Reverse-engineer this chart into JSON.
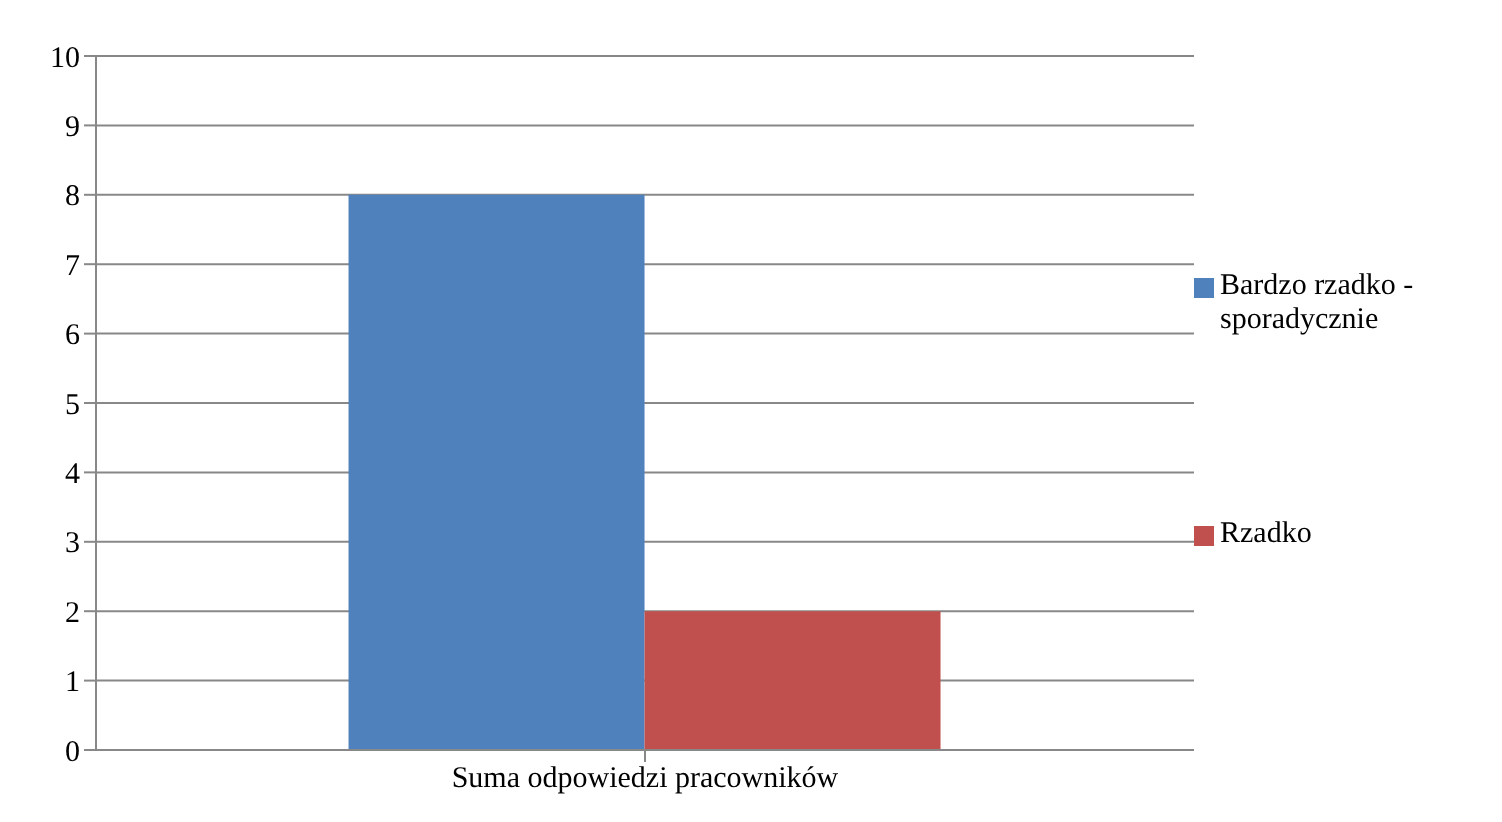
{
  "chart_data": {
    "type": "bar",
    "categories": [
      "Suma odpowiedzi pracowników"
    ],
    "series": [
      {
        "name": "Bardzo rzadko - sporadycznie",
        "color": "#4f81bd",
        "values": [
          8
        ]
      },
      {
        "name": "Rzadko",
        "color": "#c0504d",
        "values": [
          2
        ]
      }
    ],
    "ylim": [
      0,
      10
    ],
    "yticks": [
      0,
      1,
      2,
      3,
      4,
      5,
      6,
      7,
      8,
      9,
      10
    ],
    "grid": "y",
    "legend": "right"
  }
}
